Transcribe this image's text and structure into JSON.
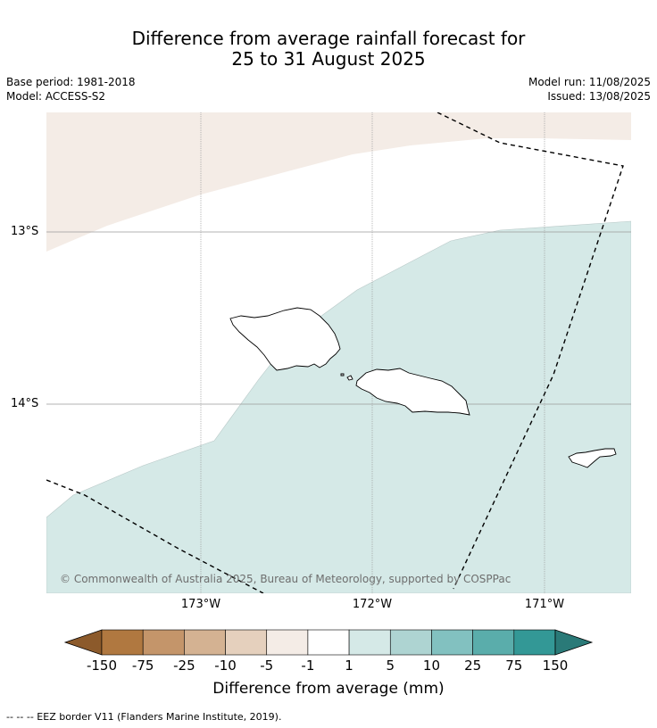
{
  "title": {
    "line1": "Difference from average rainfall forecast for",
    "line2": "25 to 31 August 2025"
  },
  "meta": {
    "base_period": "Base period: 1981-2018",
    "model": "Model: ACCESS-S2",
    "model_run": "Model run: 11/08/2025",
    "issued": "Issued: 13/08/2025"
  },
  "map": {
    "lat_labels": [
      "13°S",
      "14°S"
    ],
    "lon_labels": [
      "173°W",
      "172°W",
      "171°W"
    ],
    "copyright": "© Commonwealth of Australia 2025, Bureau of Meteorology, supported by COSPPac"
  },
  "colorbar": {
    "ticks": [
      "-150",
      "-75",
      "-25",
      "-10",
      "-5",
      "-1",
      "1",
      "5",
      "10",
      "25",
      "75",
      "150"
    ],
    "colors": [
      "#8c5a2b",
      "#b07840",
      "#c4956a",
      "#d4b292",
      "#e5d0bd",
      "#f4ece6",
      "#ffffff",
      "#d5e9e7",
      "#aed4d2",
      "#82c1c0",
      "#5aadab",
      "#339896",
      "#2a7a78"
    ],
    "label": "Difference from average (mm)"
  },
  "footnote": "--  --  -- EEZ border V11 (Flanders Marine Institute, 2019)."
}
